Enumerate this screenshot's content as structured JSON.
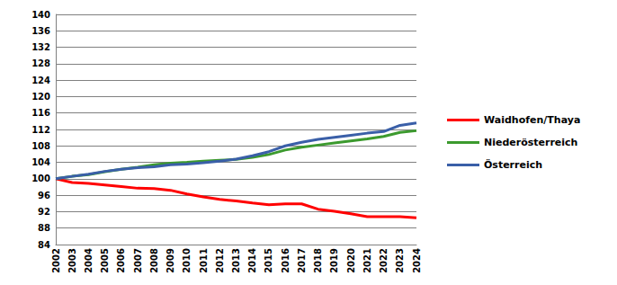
{
  "chart_data": {
    "type": "line",
    "categories": [
      "2002",
      "2003",
      "2004",
      "2005",
      "2006",
      "2007",
      "2008",
      "2009",
      "2010",
      "2011",
      "2012",
      "2013",
      "2014",
      "2015",
      "2016",
      "2017",
      "2018",
      "2019",
      "2020",
      "2021",
      "2022",
      "2023",
      "2024"
    ],
    "series": [
      {
        "name": "Waidhofen/Thaya",
        "color": "#ff0000",
        "values": [
          100,
          99.1,
          98.9,
          98.5,
          98.1,
          97.7,
          97.6,
          97.2,
          96.3,
          95.6,
          95.0,
          94.6,
          94.1,
          93.7,
          93.9,
          93.9,
          92.6,
          92.1,
          91.5,
          90.8,
          90.8,
          90.8,
          90.5
        ]
      },
      {
        "name": "Niederösterreich",
        "color": "#3c9a2e",
        "values": [
          100,
          100.6,
          101.0,
          101.7,
          102.3,
          102.8,
          103.4,
          103.8,
          104.0,
          104.3,
          104.5,
          104.7,
          105.2,
          105.9,
          107.0,
          107.7,
          108.2,
          108.7,
          109.2,
          109.7,
          110.3,
          111.3,
          111.7
        ]
      },
      {
        "name": "Österreich",
        "color": "#3a5fa8",
        "values": [
          100,
          100.6,
          101.1,
          101.8,
          102.3,
          102.7,
          102.9,
          103.4,
          103.6,
          103.9,
          104.3,
          104.8,
          105.6,
          106.6,
          108.0,
          108.9,
          109.6,
          110.1,
          110.6,
          111.1,
          111.5,
          113.0,
          113.6
        ]
      }
    ],
    "ylim": [
      84,
      140
    ],
    "yticks": [
      84,
      88,
      92,
      96,
      100,
      104,
      108,
      112,
      116,
      120,
      124,
      128,
      132,
      136,
      140
    ],
    "grid": true,
    "legend": "right"
  }
}
